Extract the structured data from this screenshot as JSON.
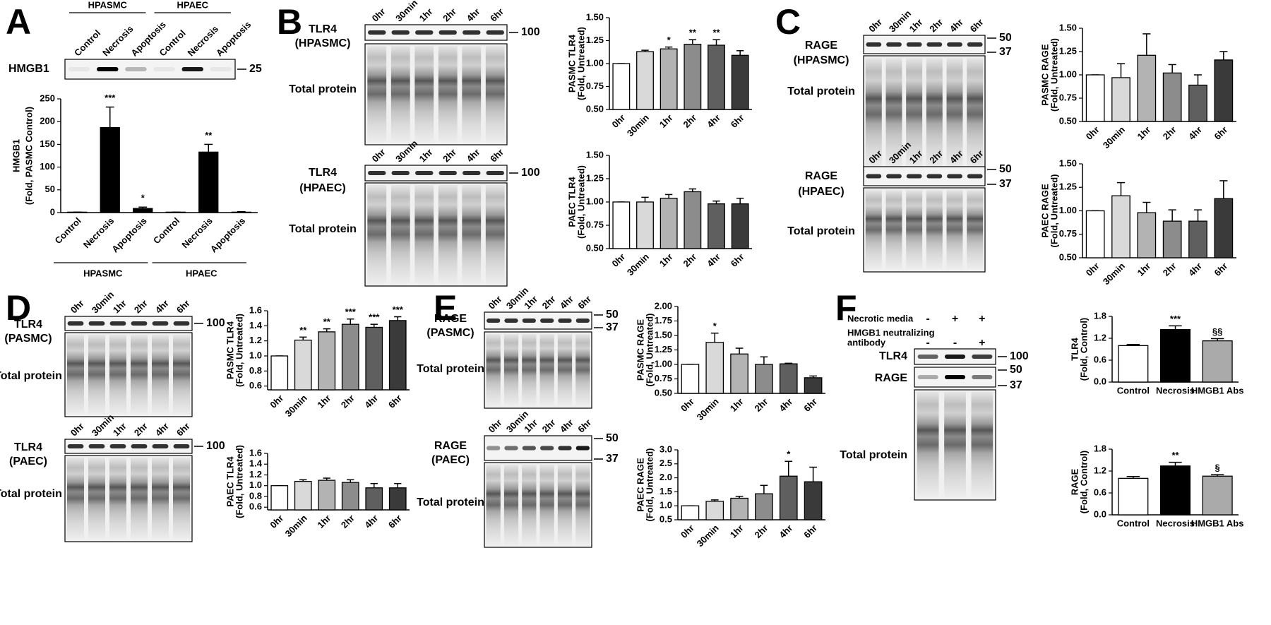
{
  "panel_letters": [
    "A",
    "B",
    "C",
    "D",
    "E",
    "F"
  ],
  "blots": [
    {
      "groups": [
        "HPASMC",
        "HPAEC"
      ],
      "lanes": [
        "Control",
        "Necrosis",
        "Apoptosis",
        "Control",
        "Necrosis",
        "Apoptosis"
      ],
      "strips": [
        {
          "label": [
            "HMGB1"
          ],
          "markers": [
            25
          ]
        }
      ]
    },
    {
      "lanes": [
        "0hr",
        "30min",
        "1hr",
        "2hr",
        "4hr",
        "6hr"
      ],
      "strips": [
        {
          "label": [
            "TLR4",
            "(HPASMC)"
          ],
          "markers": [
            100
          ]
        }
      ],
      "total": "Total protein"
    },
    {
      "lanes": [
        "0hr",
        "30min",
        "1hr",
        "2hr",
        "4hr",
        "6hr"
      ],
      "strips": [
        {
          "label": [
            "TLR4",
            "(HPAEC)"
          ],
          "markers": [
            100
          ]
        }
      ],
      "total": "Total protein"
    },
    {
      "lanes": [
        "0hr",
        "30min",
        "1hr",
        "2hr",
        "4hr",
        "6hr"
      ],
      "strips": [
        {
          "label": [
            "RAGE",
            "(HPASMC)"
          ],
          "markers": [
            50,
            37
          ]
        }
      ],
      "total": "Total protein"
    },
    {
      "lanes": [
        "0hr",
        "30min",
        "1hr",
        "2hr",
        "4hr",
        "6hr"
      ],
      "strips": [
        {
          "label": [
            "RAGE",
            "(HPAEC)"
          ],
          "markers": [
            50,
            37
          ]
        }
      ],
      "total": "Total protein"
    },
    {
      "lanes": [
        "0hr",
        "30min",
        "1hr",
        "2hr",
        "4hr",
        "6hr"
      ],
      "strips": [
        {
          "label": [
            "TLR4",
            "(PASMC)"
          ],
          "markers": [
            100
          ]
        }
      ],
      "total": "Total protein"
    },
    {
      "lanes": [
        "0hr",
        "30min",
        "1hr",
        "2hr",
        "4hr",
        "6hr"
      ],
      "strips": [
        {
          "label": [
            "TLR4",
            "(PAEC)"
          ],
          "markers": [
            100
          ]
        }
      ],
      "total": "Total protein"
    },
    {
      "lanes": [
        "0hr",
        "30min",
        "1hr",
        "2hr",
        "4hr",
        "6hr"
      ],
      "strips": [
        {
          "label": [
            "RAGE",
            "(PASMC)"
          ],
          "markers": [
            50,
            37
          ]
        }
      ],
      "total": "Total protein"
    },
    {
      "lanes": [
        "0hr",
        "30min",
        "1hr",
        "2hr",
        "4hr",
        "6hr"
      ],
      "strips": [
        {
          "label": [
            "RAGE",
            "(PAEC)"
          ],
          "markers": [
            50,
            37
          ]
        }
      ],
      "total": "Total protein"
    },
    {
      "treatments": [
        {
          "label": [
            "Necrotic media"
          ],
          "signs": [
            "-",
            "+",
            "+"
          ]
        },
        {
          "label": [
            "HMGB1 neutralizing",
            "antibody"
          ],
          "signs": [
            "-",
            "-",
            "+"
          ]
        }
      ],
      "strips": [
        {
          "label": [
            "TLR4"
          ],
          "markers": [
            100
          ]
        },
        {
          "label": [
            "RAGE"
          ],
          "markers": [
            50,
            37
          ]
        }
      ],
      "total": "Total protein"
    }
  ],
  "chart_data": [
    {
      "type": "bar",
      "ylabel": [
        "HMGB1",
        "(Fold, PASMC Control)"
      ],
      "categories": [
        "Control",
        "Necrosis",
        "Apoptosis",
        "Control",
        "Necrosis",
        "Apoptosis"
      ],
      "values": [
        1,
        187,
        9,
        1,
        133,
        1
      ],
      "errors": [
        0,
        45,
        3,
        0,
        17,
        1
      ],
      "annotations": [
        null,
        "***",
        "*",
        null,
        "**",
        null
      ],
      "colors": [
        "#000000",
        "#000000",
        "#000000",
        "#000000",
        "#000000",
        "#000000"
      ],
      "ylim": [
        0,
        250
      ],
      "yticks": [
        0,
        50,
        100,
        150,
        200,
        250
      ],
      "groups": [
        "HPASMC",
        "HPAEC"
      ]
    },
    {
      "type": "bar",
      "ylabel": [
        "PASMC TLR4",
        "(Fold, Untreated)"
      ],
      "categories": [
        "0hr",
        "30min",
        "1hr",
        "2hr",
        "4hr",
        "6hr"
      ],
      "values": [
        1.0,
        1.13,
        1.16,
        1.21,
        1.2,
        1.09
      ],
      "errors": [
        0,
        0.015,
        0.02,
        0.05,
        0.06,
        0.05
      ],
      "annotations": [
        null,
        null,
        "*",
        "**",
        "**",
        null
      ],
      "colors": [
        "#ffffff",
        "#d9d9d9",
        "#b3b3b3",
        "#8c8c8c",
        "#5f5f5f",
        "#3a3a3a"
      ],
      "ylim": [
        0.5,
        1.5
      ],
      "yticks": [
        {
          "value": 0.5,
          "label": "0.50"
        },
        0.75,
        {
          "value": 1,
          "label": "1.00"
        },
        1.25,
        {
          "value": 1.5,
          "label": "1.50"
        }
      ]
    },
    {
      "type": "bar",
      "ylabel": [
        "PAEC TLR4",
        "(Fold, Untreated)"
      ],
      "categories": [
        "0hr",
        "30min",
        "1hr",
        "2hr",
        "4hr",
        "6hr"
      ],
      "values": [
        1.0,
        1.0,
        1.04,
        1.11,
        0.98,
        0.98
      ],
      "errors": [
        0,
        0.05,
        0.04,
        0.03,
        0.03,
        0.06
      ],
      "colors": [
        "#ffffff",
        "#d9d9d9",
        "#b3b3b3",
        "#8c8c8c",
        "#5f5f5f",
        "#3a3a3a"
      ],
      "ylim": [
        0.5,
        1.5
      ],
      "yticks": [
        {
          "value": 0.5,
          "label": "0.50"
        },
        0.75,
        {
          "value": 1,
          "label": "1.00"
        },
        1.25,
        {
          "value": 1.5,
          "label": "1.50"
        }
      ]
    },
    {
      "type": "bar",
      "ylabel": [
        "PASMC RAGE",
        "(Fold, Untreated)"
      ],
      "categories": [
        "0hr",
        "30min",
        "1hr",
        "2hr",
        "4hr",
        "6hr"
      ],
      "values": [
        1.0,
        0.97,
        1.21,
        1.02,
        0.89,
        1.16
      ],
      "errors": [
        0,
        0.15,
        0.23,
        0.09,
        0.11,
        0.09
      ],
      "colors": [
        "#ffffff",
        "#d9d9d9",
        "#b3b3b3",
        "#8c8c8c",
        "#5f5f5f",
        "#3a3a3a"
      ],
      "ylim": [
        0.5,
        1.5
      ],
      "yticks": [
        {
          "value": 0.5,
          "label": "0.50"
        },
        0.75,
        {
          "value": 1,
          "label": "1.00"
        },
        1.25,
        {
          "value": 1.5,
          "label": "1.50"
        }
      ]
    },
    {
      "type": "bar",
      "ylabel": [
        "PAEC RAGE",
        "(Fold, Untreated)"
      ],
      "categories": [
        "0hr",
        "30min",
        "1hr",
        "2hr",
        "4hr",
        "6hr"
      ],
      "values": [
        1.0,
        1.16,
        0.98,
        0.89,
        0.89,
        1.13
      ],
      "errors": [
        0,
        0.14,
        0.11,
        0.12,
        0.12,
        0.19
      ],
      "colors": [
        "#ffffff",
        "#d9d9d9",
        "#b3b3b3",
        "#8c8c8c",
        "#5f5f5f",
        "#3a3a3a"
      ],
      "ylim": [
        0.5,
        1.5
      ],
      "yticks": [
        {
          "value": 0.5,
          "label": "0.50"
        },
        0.75,
        {
          "value": 1,
          "label": "1.00"
        },
        1.25,
        {
          "value": 1.5,
          "label": "1.50"
        }
      ]
    },
    {
      "type": "bar",
      "ylabel": [
        "PASMC TLR4",
        "(Fold, Untreated)"
      ],
      "categories": [
        "0hr",
        "30min",
        "1hr",
        "2hr",
        "4hr",
        "6hr"
      ],
      "values": [
        1.0,
        1.21,
        1.32,
        1.42,
        1.38,
        1.47
      ],
      "errors": [
        0,
        0.04,
        0.04,
        0.07,
        0.04,
        0.05
      ],
      "annotations": [
        null,
        "**",
        "**",
        "***",
        "***",
        "***"
      ],
      "colors": [
        "#ffffff",
        "#d9d9d9",
        "#b3b3b3",
        "#8c8c8c",
        "#5f5f5f",
        "#3a3a3a"
      ],
      "ylim": [
        0.55,
        1.6
      ],
      "yticks": [
        0.6,
        0.8,
        {
          "value": 1,
          "label": "1.0"
        },
        1.2,
        1.4,
        1.6
      ]
    },
    {
      "type": "bar",
      "ylabel": [
        "PAEC TLR4",
        "(Fold, Untreated)"
      ],
      "categories": [
        "0hr",
        "30min",
        "1hr",
        "2hr",
        "4hr",
        "6hr"
      ],
      "values": [
        1.0,
        1.08,
        1.1,
        1.06,
        0.96,
        0.96
      ],
      "errors": [
        0,
        0.03,
        0.04,
        0.05,
        0.08,
        0.08
      ],
      "colors": [
        "#ffffff",
        "#d9d9d9",
        "#b3b3b3",
        "#8c8c8c",
        "#5f5f5f",
        "#3a3a3a"
      ],
      "ylim": [
        0.55,
        1.6
      ],
      "yticks": [
        0.6,
        0.8,
        {
          "value": 1,
          "label": "1.0"
        },
        1.2,
        1.4,
        1.6
      ]
    },
    {
      "type": "bar",
      "ylabel": [
        "PASMC RAGE",
        "(Fold, Untreated)"
      ],
      "categories": [
        "0hr",
        "30min",
        "1hr",
        "2hr",
        "4hr",
        "6hr"
      ],
      "values": [
        1.0,
        1.38,
        1.18,
        1.0,
        1.01,
        0.77
      ],
      "errors": [
        0,
        0.16,
        0.1,
        0.13,
        0.01,
        0.03
      ],
      "annotations": [
        null,
        "*",
        null,
        null,
        null,
        null
      ],
      "colors": [
        "#ffffff",
        "#d9d9d9",
        "#b3b3b3",
        "#8c8c8c",
        "#5f5f5f",
        "#3a3a3a"
      ],
      "ylim": [
        0.5,
        2
      ],
      "yticks": [
        {
          "value": 0.5,
          "label": "0.50"
        },
        0.75,
        {
          "value": 1,
          "label": "1.00"
        },
        1.25,
        {
          "value": 1.5,
          "label": "1.50"
        },
        1.75,
        {
          "value": 2,
          "label": "2.00"
        }
      ]
    },
    {
      "type": "bar",
      "ylabel": [
        "PAEC RAGE",
        "(Fold, Untreated)"
      ],
      "categories": [
        "0hr",
        "30min",
        "1hr",
        "2hr",
        "4hr",
        "6hr"
      ],
      "values": [
        1.0,
        1.16,
        1.27,
        1.43,
        2.06,
        1.86
      ],
      "errors": [
        0,
        0.05,
        0.07,
        0.3,
        0.53,
        0.52
      ],
      "annotations": [
        null,
        null,
        null,
        null,
        "*",
        null
      ],
      "colors": [
        "#ffffff",
        "#d9d9d9",
        "#b3b3b3",
        "#8c8c8c",
        "#5f5f5f",
        "#3a3a3a"
      ],
      "ylim": [
        0.5,
        3
      ],
      "yticks": [
        0.5,
        {
          "value": 1,
          "label": "1.0"
        },
        1.5,
        {
          "value": 2,
          "label": "2.0"
        },
        2.5,
        {
          "value": 3,
          "label": "3.0"
        }
      ]
    },
    {
      "type": "bar",
      "ylabel": [
        "TLR4",
        "(Fold, Control)"
      ],
      "categories": [
        "Control",
        "Necrosis",
        "HMGB1 Abs"
      ],
      "values": [
        1.0,
        1.44,
        1.13
      ],
      "errors": [
        0.03,
        0.1,
        0.06
      ],
      "annotations": [
        null,
        "***",
        "§§"
      ],
      "colors": [
        "#ffffff",
        "#000000",
        "#aaaaaa"
      ],
      "ylim": [
        0,
        1.8
      ],
      "yticks": [
        {
          "value": 0,
          "label": "0.0"
        },
        0.6,
        1.2,
        1.8
      ]
    },
    {
      "type": "bar",
      "ylabel": [
        "RAGE",
        "(Fold, Control)"
      ],
      "categories": [
        "Control",
        "Necrosis",
        "HMGB1 Abs"
      ],
      "values": [
        1.0,
        1.34,
        1.06
      ],
      "errors": [
        0.05,
        0.1,
        0.04
      ],
      "annotations": [
        null,
        "**",
        "§"
      ],
      "colors": [
        "#ffffff",
        "#000000",
        "#aaaaaa"
      ],
      "ylim": [
        0,
        1.8
      ],
      "yticks": [
        {
          "value": 0,
          "label": "0.0"
        },
        0.6,
        1.2,
        1.8
      ]
    }
  ]
}
